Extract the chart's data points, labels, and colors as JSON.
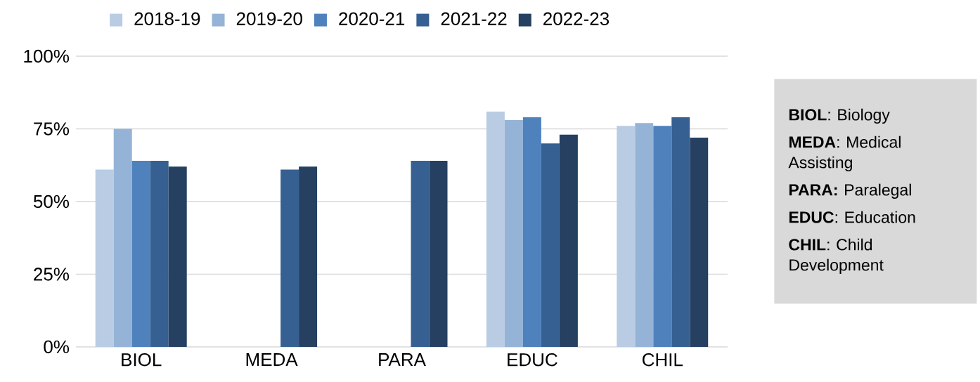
{
  "chart_data": {
    "type": "bar",
    "categories": [
      "BIOL",
      "MEDA",
      "PARA",
      "EDUC",
      "CHIL"
    ],
    "series": [
      {
        "name": "2018-19",
        "color": "#b9cce4",
        "values": [
          61,
          null,
          null,
          81,
          76
        ]
      },
      {
        "name": "2019-20",
        "color": "#95b3d7",
        "values": [
          75,
          null,
          null,
          78,
          77
        ]
      },
      {
        "name": "2020-21",
        "color": "#4f81bd",
        "values": [
          64,
          null,
          null,
          79,
          76
        ]
      },
      {
        "name": "2021-22",
        "color": "#366092",
        "values": [
          64,
          61,
          64,
          70,
          79
        ]
      },
      {
        "name": "2022-23",
        "color": "#254061",
        "values": [
          62,
          62,
          64,
          73,
          72
        ]
      }
    ],
    "ylim": [
      0,
      100
    ],
    "yticks": [
      {
        "value": 0,
        "label": "0%"
      },
      {
        "value": 25,
        "label": "25%"
      },
      {
        "value": 50,
        "label": "50%"
      },
      {
        "value": 75,
        "label": "75%"
      },
      {
        "value": 100,
        "label": "100%"
      }
    ],
    "grid": "y",
    "legend": "top",
    "annotations": [
      "**BIOL**: Biology",
      "**MEDA**: Medical Assisting",
      "**PARA:** Paralegal",
      "**EDUC**: Education",
      "**CHIL**: Child Development"
    ]
  }
}
